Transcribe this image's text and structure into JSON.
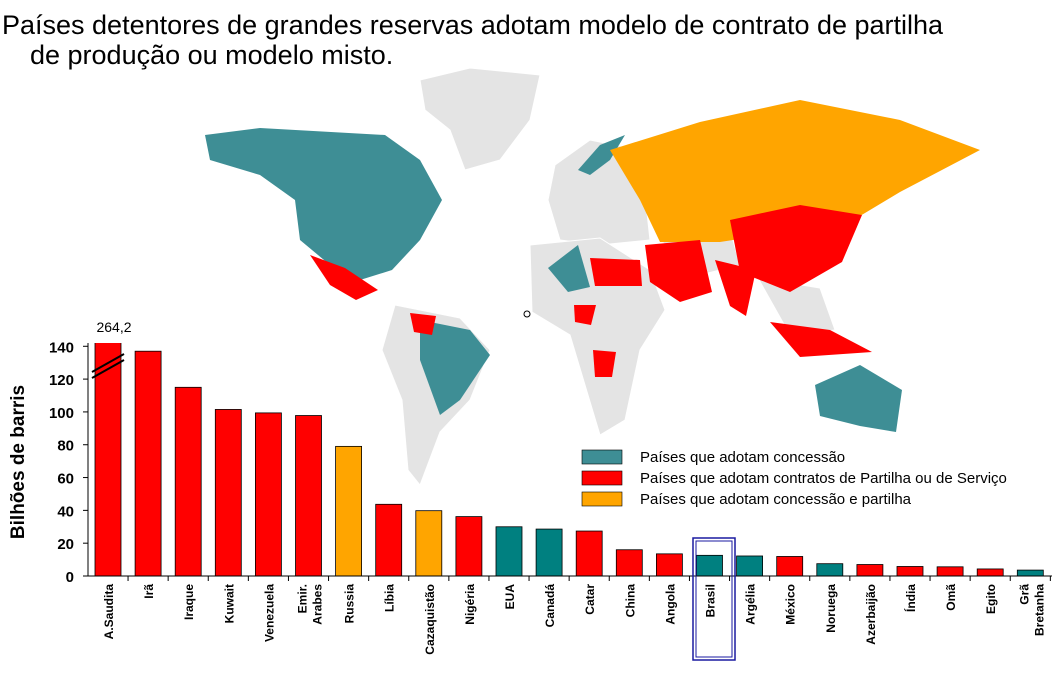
{
  "chart_data": {
    "type": "bar",
    "title": [
      "Países detentores de grandes reservas adotam modelo de contrato de partilha",
      "de produção ou modelo misto."
    ],
    "y_label": "Bilhões de barris",
    "categories": [
      "A.Saudita",
      "Irã",
      "Iraque",
      "Kuwait",
      "Venezuela",
      "Emir. Arabes",
      "Russia",
      "Líbia",
      "Cazaquistão",
      "Nigéria",
      "EUA",
      "Canadá",
      "Catar",
      "China",
      "Angola",
      "Brasil",
      "Argélia",
      "México",
      "Noruega",
      "Azerbaijão",
      "Índia",
      "Omã",
      "Egito",
      "Grã Bretanha"
    ],
    "values": [
      264.2,
      137,
      115,
      101.5,
      99.4,
      97.8,
      79,
      43.7,
      39.8,
      36.2,
      30,
      28.6,
      27.4,
      16,
      13.5,
      12.6,
      12.2,
      11.9,
      7.5,
      7,
      5.8,
      5.6,
      4.3,
      3.6
    ],
    "value_labels": [
      "264,2",
      null,
      null,
      null,
      null,
      null,
      null,
      null,
      null,
      null,
      null,
      null,
      null,
      null,
      null,
      null,
      null,
      null,
      null,
      null,
      null,
      null,
      null,
      null
    ],
    "colors": [
      "#ff0000",
      "#ff0000",
      "#ff0000",
      "#ff0000",
      "#ff0000",
      "#ff0000",
      "#ffa500",
      "#ff0000",
      "#ffa500",
      "#ff0000",
      "#008080",
      "#008080",
      "#ff0000",
      "#ff0000",
      "#ff0000",
      "#008080",
      "#008080",
      "#ff0000",
      "#008080",
      "#ff0000",
      "#ff0000",
      "#ff0000",
      "#ff0000",
      "#008080"
    ],
    "legend": [
      {
        "label": "Países que adotam concessão",
        "color": "#3e8e95"
      },
      {
        "label": "Países que adotam contratos de Partilha ou de Serviço",
        "color": "#ff0000"
      },
      {
        "label": "Países que adotam concessão e partilha",
        "color": "#ffa500"
      }
    ],
    "ylim": [
      0,
      142
    ],
    "yticks": [
      0,
      20,
      40,
      60,
      80,
      100,
      120,
      140
    ]
  }
}
